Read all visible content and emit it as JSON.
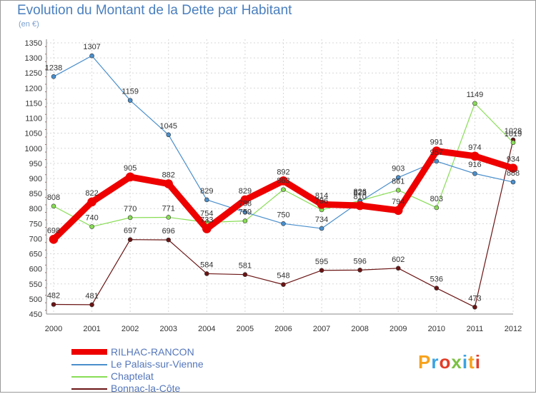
{
  "title": "Evolution du Montant de la Dette par Habitant",
  "subtitle": "(en €)",
  "logo": {
    "text": "Proxiti",
    "colors": [
      "#f7a21b",
      "#3aa3e3",
      "#e23d28",
      "#7cc142",
      "#3aa3e3",
      "#f7a21b",
      "#e23d28"
    ]
  },
  "chart_data": {
    "type": "line",
    "x": [
      "2000",
      "2001",
      "2002",
      "2003",
      "2004",
      "2005",
      "2006",
      "2007",
      "2008",
      "2009",
      "2010",
      "2011",
      "2012"
    ],
    "ylim": [
      450,
      1350
    ],
    "yticks": [
      450,
      500,
      550,
      600,
      650,
      700,
      750,
      800,
      850,
      900,
      950,
      1000,
      1050,
      1100,
      1150,
      1200,
      1250,
      1300,
      1350
    ],
    "grid": "dashed",
    "legend_position": "bottom-left",
    "series": [
      {
        "name": "Bonnac-la-Côte",
        "color": "#6b1414",
        "values": [
          482,
          481,
          697,
          696,
          584,
          581,
          548,
          595,
          596,
          602,
          536,
          473,
          1028
        ]
      },
      {
        "name": "Chaptelat",
        "color": "#88dd55",
        "values": [
          808,
          740,
          770,
          771,
          754,
          759,
          863,
          796,
          826,
          861,
          803,
          1149,
          1019
        ]
      },
      {
        "name": "Le Palais-sur-Vienne",
        "color": "#4a8fcc",
        "values": [
          1238,
          1307,
          1159,
          1045,
          829,
          788,
          750,
          734,
          823,
          903,
          957,
          916,
          888
        ]
      },
      {
        "name": "RILHAC-RANCON",
        "color": "#ee0000",
        "values": [
          698,
          822,
          905,
          882,
          733,
          829,
          892,
          814,
          810,
          794,
          991,
          974,
          934
        ]
      }
    ],
    "labels": [
      {
        "series": 0,
        "texts": [
          "482",
          "481",
          "697",
          "696",
          "584",
          "581",
          "548",
          "595",
          "596",
          "602",
          "536",
          "473",
          "1028"
        ]
      },
      {
        "series": 1,
        "texts": [
          "808",
          "740",
          "770",
          "771",
          "754",
          "759",
          "863",
          "796",
          "826",
          "861",
          "803",
          "1149",
          "1019"
        ]
      },
      {
        "series": 2,
        "texts": [
          "1238",
          "1307",
          "1159",
          "1045",
          "829",
          "788",
          "750",
          "734",
          "823",
          "903",
          "957",
          "916",
          "888"
        ]
      },
      {
        "series": 3,
        "texts": [
          "698",
          "822",
          "905",
          "882",
          "733",
          "829",
          "892",
          "814",
          "810",
          "794",
          "991",
          "974",
          "934"
        ]
      }
    ]
  }
}
